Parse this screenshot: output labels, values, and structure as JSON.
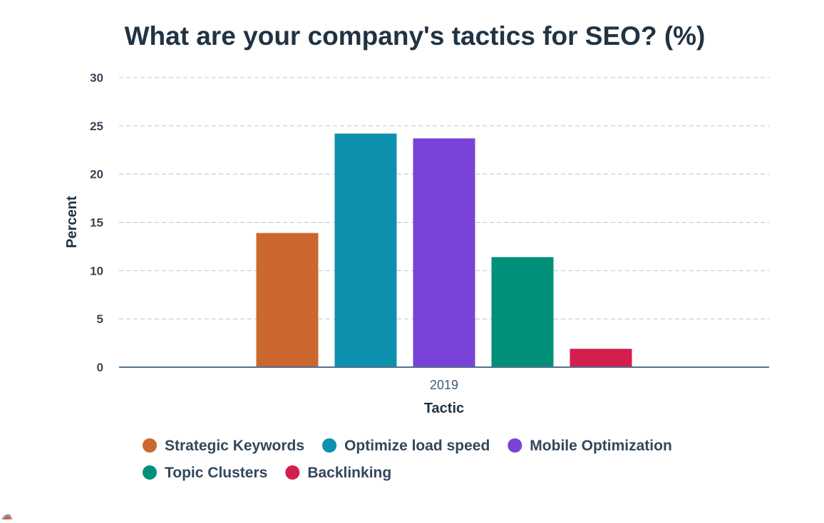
{
  "chart_data": {
    "type": "bar",
    "title": "What are your company's tactics for SEO? (%)",
    "xlabel": "Tactic",
    "ylabel": "Percent",
    "categories": [
      "2019"
    ],
    "ylim": [
      0,
      30
    ],
    "yticks": [
      0,
      5,
      10,
      15,
      20,
      25,
      30
    ],
    "grid": true,
    "legend_position": "bottom-left",
    "series": [
      {
        "name": "Strategic Keywords",
        "values": [
          13.9
        ],
        "color": "#cc6730"
      },
      {
        "name": "Optimize load speed",
        "values": [
          24.2
        ],
        "color": "#0d8fae"
      },
      {
        "name": "Mobile Optimization",
        "values": [
          23.7
        ],
        "color": "#7843d6"
      },
      {
        "name": "Topic Clusters",
        "values": [
          11.4
        ],
        "color": "#00907a"
      },
      {
        "name": "Backlinking",
        "values": [
          1.9
        ],
        "color": "#d41e4e"
      }
    ]
  }
}
